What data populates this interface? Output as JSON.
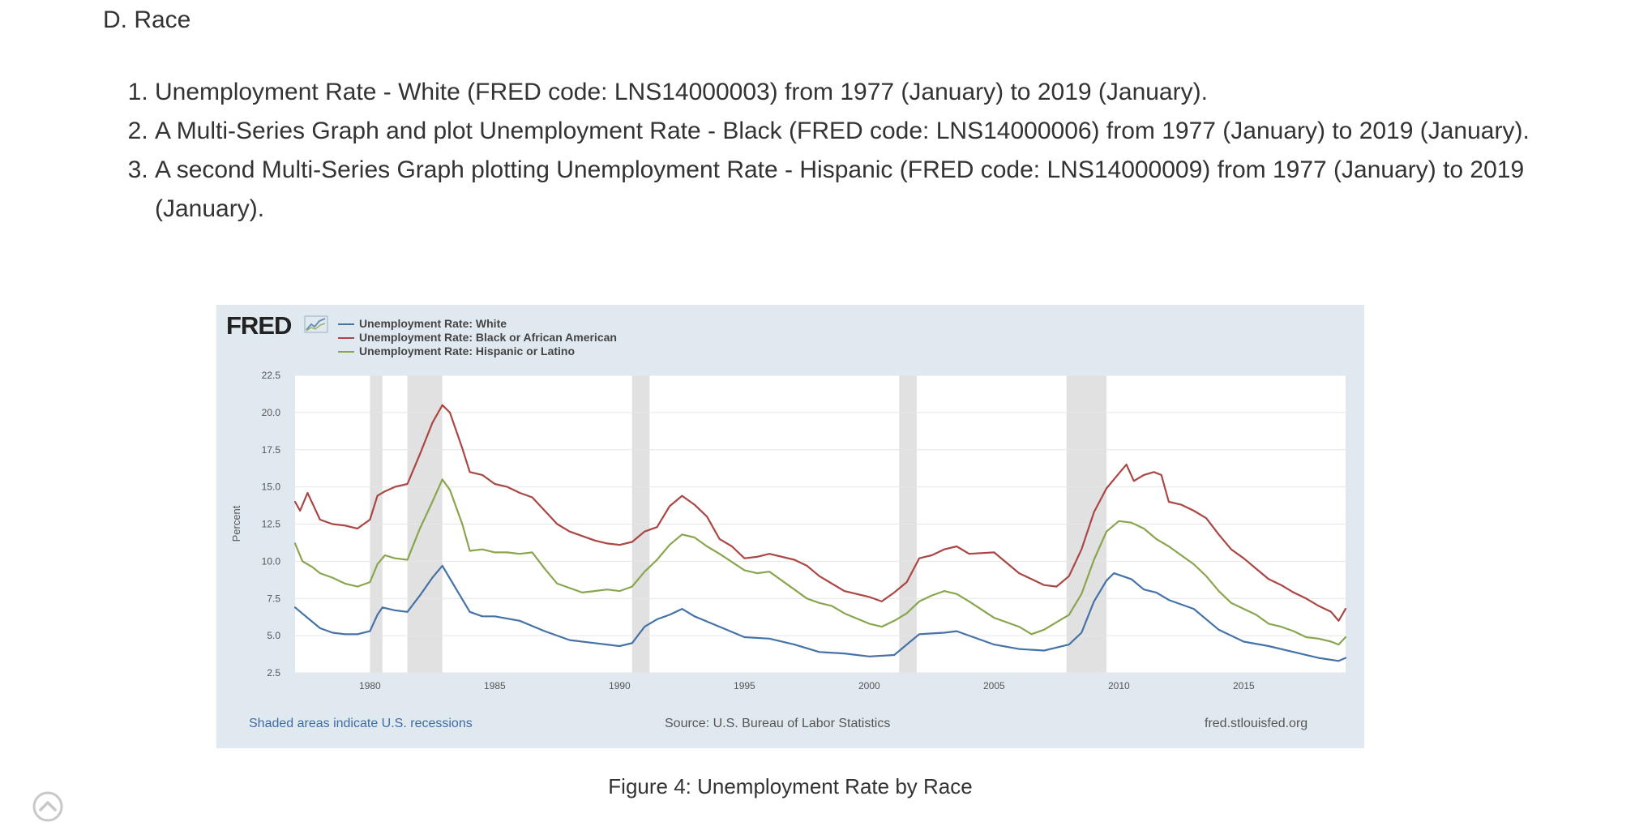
{
  "section_title": "D. Race",
  "tasks": [
    "Unemployment Rate - White (FRED code: LNS14000003) from 1977 (January) to 2019 (January).",
    "A Multi-Series Graph and plot Unemployment Rate - Black (FRED code: LNS14000006) from 1977 (January) to 2019 (January).",
    "A second Multi-Series Graph plotting Unemployment Rate - Hispanic (FRED code: LNS14000009) from 1977 (January) to 2019 (January)."
  ],
  "figure": {
    "logo": "FRED",
    "notes": {
      "recessions": "Shaded areas indicate U.S. recessions",
      "source": "Source: U.S. Bureau of Labor Statistics",
      "site": "fred.stlouisfed.org"
    },
    "caption": "Figure 4: Unemployment Rate by Race"
  },
  "colors": {
    "white": "#4572a7",
    "black": "#aa4643",
    "hispanic": "#89a54e",
    "recession": "#e1e1e1",
    "frame": "#e1e9f0"
  },
  "icons": {
    "scroll_top": "chevron-up-circle-icon"
  },
  "chart_data": {
    "type": "line",
    "title": "",
    "xlabel": "",
    "ylabel": "Percent",
    "xlim": [
      1977.0,
      2019.08
    ],
    "ylim": [
      2.5,
      22.5
    ],
    "yticks": [
      "2.5",
      "5.0",
      "7.5",
      "10.0",
      "12.5",
      "15.0",
      "17.5",
      "20.0",
      "22.5"
    ],
    "xticks": [
      "1980",
      "1985",
      "1990",
      "1995",
      "2000",
      "2005",
      "2010",
      "2015"
    ],
    "grid": true,
    "legend_position": "top-left",
    "recessions": [
      [
        1980.0,
        1980.5
      ],
      [
        1981.5,
        1982.9
      ],
      [
        1990.5,
        1991.2
      ],
      [
        2001.2,
        2001.9
      ],
      [
        2007.9,
        2009.5
      ]
    ],
    "series": [
      {
        "name": "Unemployment Rate: White",
        "x": [
          1977.0,
          1977.5,
          1978.0,
          1978.5,
          1979.0,
          1979.5,
          1980.0,
          1980.3,
          1980.5,
          1981.0,
          1981.5,
          1982.0,
          1982.5,
          1982.9,
          1983.5,
          1984.0,
          1984.5,
          1985.0,
          1986.0,
          1987.0,
          1988.0,
          1989.0,
          1990.0,
          1990.5,
          1991.0,
          1991.5,
          1992.0,
          1992.5,
          1993.0,
          1994.0,
          1995.0,
          1996.0,
          1997.0,
          1998.0,
          1999.0,
          2000.0,
          2001.0,
          2001.5,
          2002.0,
          2003.0,
          2003.5,
          2004.0,
          2005.0,
          2006.0,
          2007.0,
          2007.5,
          2008.0,
          2008.5,
          2009.0,
          2009.5,
          2009.8,
          2010.5,
          2011.0,
          2011.5,
          2012.0,
          2013.0,
          2014.0,
          2015.0,
          2016.0,
          2017.0,
          2018.0,
          2018.8,
          2019.08
        ],
        "values": [
          6.9,
          6.2,
          5.5,
          5.2,
          5.1,
          5.1,
          5.3,
          6.4,
          6.9,
          6.7,
          6.6,
          7.7,
          8.9,
          9.7,
          8.0,
          6.6,
          6.3,
          6.3,
          6.0,
          5.3,
          4.7,
          4.5,
          4.3,
          4.5,
          5.6,
          6.1,
          6.4,
          6.8,
          6.3,
          5.6,
          4.9,
          4.8,
          4.4,
          3.9,
          3.8,
          3.6,
          3.7,
          4.4,
          5.1,
          5.2,
          5.3,
          5.0,
          4.4,
          4.1,
          4.0,
          4.2,
          4.4,
          5.2,
          7.3,
          8.7,
          9.2,
          8.8,
          8.1,
          7.9,
          7.4,
          6.8,
          5.4,
          4.6,
          4.3,
          3.9,
          3.5,
          3.3,
          3.5
        ]
      },
      {
        "name": "Unemployment Rate: Black or African American",
        "x": [
          1977.0,
          1977.2,
          1977.5,
          1978.0,
          1978.5,
          1979.0,
          1979.5,
          1980.0,
          1980.3,
          1980.6,
          1981.0,
          1981.5,
          1982.0,
          1982.5,
          1982.9,
          1983.2,
          1983.7,
          1984.0,
          1984.5,
          1985.0,
          1985.5,
          1986.0,
          1986.5,
          1987.0,
          1987.5,
          1988.0,
          1989.0,
          1989.5,
          1990.0,
          1990.5,
          1991.0,
          1991.5,
          1992.0,
          1992.5,
          1993.0,
          1993.5,
          1994.0,
          1994.5,
          1995.0,
          1995.5,
          1996.0,
          1997.0,
          1997.5,
          1998.0,
          1999.0,
          2000.0,
          2000.5,
          2001.0,
          2001.5,
          2002.0,
          2002.5,
          2003.0,
          2003.5,
          2004.0,
          2005.0,
          2006.0,
          2006.5,
          2007.0,
          2007.5,
          2008.0,
          2008.5,
          2009.0,
          2009.5,
          2010.0,
          2010.3,
          2010.6,
          2011.0,
          2011.4,
          2011.7,
          2012.0,
          2012.5,
          2013.0,
          2013.5,
          2014.0,
          2014.5,
          2015.0,
          2015.5,
          2016.0,
          2016.5,
          2017.0,
          2017.5,
          2018.0,
          2018.5,
          2018.8,
          2019.08
        ],
        "values": [
          14.0,
          13.4,
          14.6,
          12.8,
          12.5,
          12.4,
          12.2,
          12.8,
          14.4,
          14.7,
          15.0,
          15.2,
          17.2,
          19.3,
          20.5,
          20.0,
          17.6,
          16.0,
          15.8,
          15.2,
          15.0,
          14.6,
          14.3,
          13.4,
          12.5,
          12.0,
          11.4,
          11.2,
          11.1,
          11.3,
          12.0,
          12.3,
          13.7,
          14.4,
          13.8,
          13.0,
          11.5,
          11.0,
          10.2,
          10.3,
          10.5,
          10.1,
          9.7,
          9.0,
          8.0,
          7.6,
          7.3,
          7.9,
          8.6,
          10.2,
          10.4,
          10.8,
          11.0,
          10.5,
          10.6,
          9.2,
          8.8,
          8.4,
          8.3,
          9.0,
          10.8,
          13.3,
          14.9,
          15.9,
          16.5,
          15.4,
          15.8,
          16.0,
          15.8,
          14.0,
          13.8,
          13.4,
          12.9,
          11.8,
          10.8,
          10.2,
          9.5,
          8.8,
          8.4,
          7.9,
          7.5,
          7.0,
          6.6,
          6.0,
          6.8
        ]
      },
      {
        "name": "Unemployment Rate: Hispanic or Latino",
        "x": [
          1977.0,
          1977.3,
          1977.7,
          1978.0,
          1978.5,
          1979.0,
          1979.5,
          1980.0,
          1980.3,
          1980.6,
          1981.0,
          1981.5,
          1982.0,
          1982.5,
          1982.9,
          1983.2,
          1983.7,
          1984.0,
          1984.5,
          1985.0,
          1985.5,
          1986.0,
          1986.5,
          1987.0,
          1987.5,
          1988.0,
          1988.5,
          1989.0,
          1989.5,
          1990.0,
          1990.5,
          1991.0,
          1991.5,
          1992.0,
          1992.5,
          1993.0,
          1993.5,
          1994.0,
          1995.0,
          1995.5,
          1996.0,
          1997.0,
          1997.5,
          1998.0,
          1998.5,
          1999.0,
          2000.0,
          2000.5,
          2001.0,
          2001.5,
          2002.0,
          2002.5,
          2003.0,
          2003.5,
          2004.0,
          2005.0,
          2006.0,
          2006.5,
          2007.0,
          2007.5,
          2008.0,
          2008.5,
          2009.0,
          2009.5,
          2010.0,
          2010.5,
          2011.0,
          2011.5,
          2012.0,
          2012.5,
          2013.0,
          2013.5,
          2014.0,
          2014.5,
          2015.0,
          2015.5,
          2016.0,
          2016.5,
          2017.0,
          2017.5,
          2018.0,
          2018.5,
          2018.8,
          2019.08
        ],
        "values": [
          11.2,
          10.0,
          9.6,
          9.2,
          8.9,
          8.5,
          8.3,
          8.6,
          9.8,
          10.4,
          10.2,
          10.1,
          12.2,
          14.0,
          15.5,
          14.8,
          12.5,
          10.7,
          10.8,
          10.6,
          10.6,
          10.5,
          10.6,
          9.5,
          8.5,
          8.2,
          7.9,
          8.0,
          8.1,
          8.0,
          8.3,
          9.3,
          10.1,
          11.1,
          11.8,
          11.6,
          11.0,
          10.5,
          9.4,
          9.2,
          9.3,
          8.1,
          7.5,
          7.2,
          7.0,
          6.5,
          5.8,
          5.6,
          6.0,
          6.5,
          7.3,
          7.7,
          8.0,
          7.8,
          7.3,
          6.2,
          5.6,
          5.1,
          5.4,
          5.9,
          6.4,
          7.8,
          10.1,
          12.0,
          12.7,
          12.6,
          12.2,
          11.5,
          11.0,
          10.4,
          9.8,
          9.0,
          8.0,
          7.2,
          6.8,
          6.4,
          5.8,
          5.6,
          5.3,
          4.9,
          4.8,
          4.6,
          4.4,
          4.9
        ]
      }
    ]
  }
}
